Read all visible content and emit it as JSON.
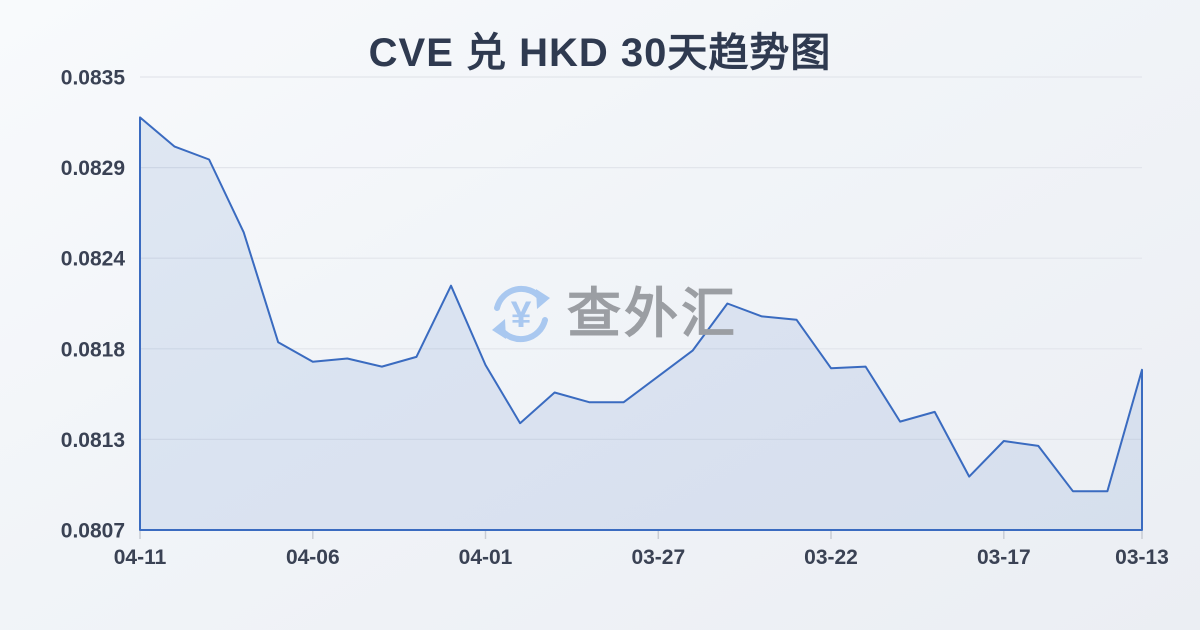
{
  "title": "CVE 兑 HKD 30天趋势图",
  "watermark": {
    "text": "查外汇",
    "currency_symbol": "¥",
    "icon": "currency-exchange-icon",
    "icon_color": "#a9c8f0",
    "text_color": "#9b9ea3"
  },
  "colors": {
    "background_top": "#f8fafc",
    "background_bottom": "#ebeef3",
    "title_text": "#2f3a50",
    "axis_label_text": "#3a4254",
    "gridline": "#e2e5eb",
    "tick_mark": "#c8ccd4",
    "line": "#3a6bc0",
    "area_fill": "rgba(68,114,196,0.13)"
  },
  "chart_data": {
    "type": "area",
    "title": "CVE 兑 HKD 30天趋势图",
    "xlabel": "",
    "ylabel": "",
    "x_axis_order": "dates descending left to right (newest first)",
    "grid": true,
    "legend": "none",
    "ylim": [
      0.0807,
      0.0835
    ],
    "y_tick_labels": [
      "0.0835",
      "0.0829",
      "0.0824",
      "0.0818",
      "0.0813",
      "0.0807"
    ],
    "x_tick_labels": [
      "04-11",
      "04-06",
      "04-01",
      "03-27",
      "03-22",
      "03-17",
      "03-13"
    ],
    "x_tick_indices": [
      0,
      5,
      10,
      15,
      20,
      25,
      29
    ],
    "x": [
      "04-11",
      "04-10",
      "04-09",
      "04-08",
      "04-07",
      "04-06",
      "04-05",
      "04-04",
      "04-03",
      "04-02",
      "04-01",
      "03-31",
      "03-30",
      "03-29",
      "03-28",
      "03-27",
      "03-26",
      "03-25",
      "03-24",
      "03-23",
      "03-22",
      "03-21",
      "03-20",
      "03-19",
      "03-18",
      "03-17",
      "03-16",
      "03-15",
      "03-14",
      "03-13"
    ],
    "values": [
      0.08325,
      0.08307,
      0.08299,
      0.08254,
      0.08186,
      0.08174,
      0.08176,
      0.08171,
      0.08177,
      0.08221,
      0.08172,
      0.08136,
      0.08155,
      0.08149,
      0.08149,
      0.08165,
      0.08181,
      0.0821,
      0.08202,
      0.082,
      0.0817,
      0.08171,
      0.08137,
      0.08143,
      0.08103,
      0.08125,
      0.08122,
      0.08094,
      0.08094,
      0.08169
    ]
  }
}
